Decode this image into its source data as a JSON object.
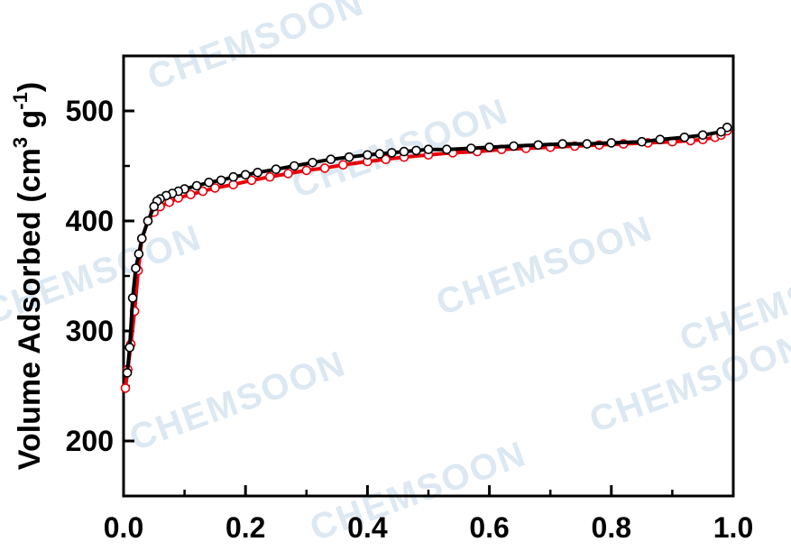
{
  "chart_data": {
    "type": "scatter",
    "title": "",
    "xlabel": "",
    "ylabel": {
      "main": "Volume Adsorbed (cm",
      "sup1": "3",
      "mid": " g",
      "sup2": "-1",
      "end": ")"
    },
    "xlim": [
      0,
      1.0
    ],
    "ylim": [
      150,
      550
    ],
    "xticks": [
      0.0,
      0.2,
      0.4,
      0.6,
      0.8,
      1.0
    ],
    "xtick_labels": [
      "0.0",
      "0.2",
      "0.4",
      "0.6",
      "0.8",
      "1.0"
    ],
    "yticks": [
      200,
      300,
      400,
      500
    ],
    "ytick_labels": [
      "200",
      "300",
      "400",
      "500"
    ],
    "grid": false,
    "legend": "none",
    "series": [
      {
        "color": "#e8000b",
        "marker": "open-circle",
        "line": true,
        "x": [
          0.003,
          0.007,
          0.012,
          0.018,
          0.024,
          0.03,
          0.04,
          0.05,
          0.06,
          0.075,
          0.09,
          0.11,
          0.13,
          0.15,
          0.18,
          0.21,
          0.24,
          0.27,
          0.3,
          0.33,
          0.36,
          0.4,
          0.43,
          0.46,
          0.5,
          0.54,
          0.58,
          0.62,
          0.66,
          0.7,
          0.74,
          0.78,
          0.82,
          0.86,
          0.9,
          0.93,
          0.95,
          0.97,
          0.98,
          0.99
        ],
        "y": [
          248,
          265,
          288,
          318,
          355,
          384,
          400,
          408,
          413,
          417,
          421,
          424,
          427,
          430,
          433,
          437,
          440,
          443,
          446,
          448,
          451,
          454,
          456,
          458,
          460,
          462,
          463,
          465,
          466,
          467,
          468,
          469,
          470,
          471,
          472,
          473,
          474,
          476,
          478,
          482
        ]
      },
      {
        "color": "#000000",
        "marker": "open-circle",
        "line": true,
        "x": [
          0.99,
          0.98,
          0.95,
          0.92,
          0.88,
          0.85,
          0.8,
          0.76,
          0.72,
          0.68,
          0.64,
          0.6,
          0.57,
          0.53,
          0.5,
          0.48,
          0.46,
          0.44,
          0.42,
          0.4,
          0.37,
          0.34,
          0.31,
          0.28,
          0.25,
          0.22,
          0.2,
          0.18,
          0.16,
          0.14,
          0.12,
          0.1,
          0.09,
          0.08,
          0.07,
          0.06,
          0.055,
          0.05,
          0.04,
          0.03,
          0.025,
          0.02,
          0.015,
          0.01,
          0.006
        ],
        "y": [
          485,
          481,
          478,
          476,
          474,
          472,
          471,
          470,
          470,
          469,
          468,
          467,
          466,
          465,
          465,
          464,
          463,
          462,
          461,
          460,
          458,
          456,
          453,
          450,
          447,
          444,
          442,
          440,
          437,
          435,
          432,
          429,
          427,
          425,
          423,
          420,
          418,
          413,
          400,
          384,
          370,
          357,
          330,
          285,
          262
        ]
      }
    ]
  },
  "watermark": {
    "text": "CHEMSOON"
  }
}
